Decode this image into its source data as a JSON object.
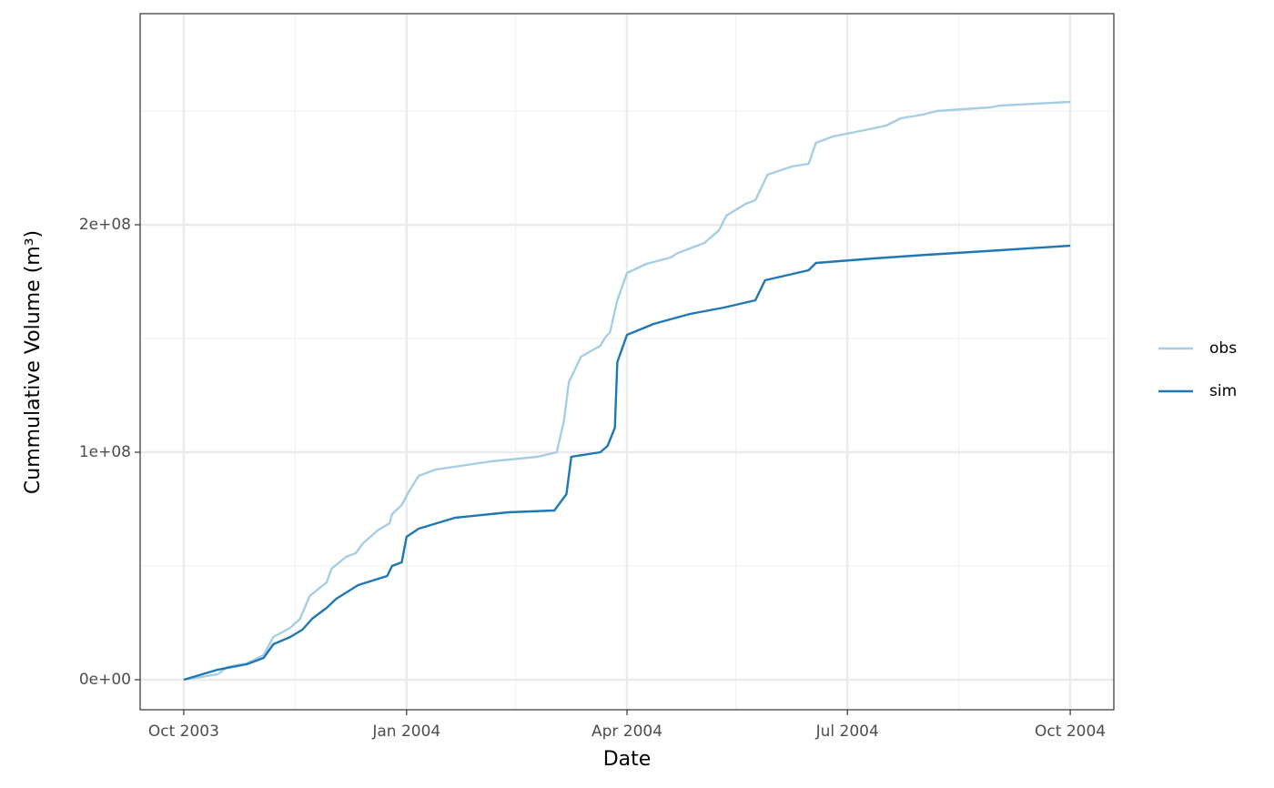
{
  "chart_data": {
    "type": "line",
    "x_label": "Date",
    "y_label": "Cummulative Volume (m³)",
    "xlim": [
      -18,
      384
    ],
    "xticks": [
      {
        "value": 0,
        "label": "Oct 2003"
      },
      {
        "value": 92,
        "label": "Jan 2004"
      },
      {
        "value": 183,
        "label": "Apr 2004"
      },
      {
        "value": 274,
        "label": "Jul 2004"
      },
      {
        "value": 366,
        "label": "Oct 2004"
      }
    ],
    "xminor": [
      46,
      137,
      228,
      320
    ],
    "ylim": [
      -13200000,
      292800000
    ],
    "yticks": [
      {
        "value": 0,
        "label": "0e+00"
      },
      {
        "value": 100000000,
        "label": "1e+08"
      },
      {
        "value": 200000000,
        "label": "2e+08"
      }
    ],
    "yminor": [
      50000000,
      150000000,
      250000000
    ],
    "grid": true,
    "legend": "right",
    "series": [
      {
        "name": "obs",
        "color": "#a6cee3",
        "x": [
          0,
          5,
          14,
          18,
          26,
          33,
          37,
          44,
          48,
          52,
          59,
          61,
          67,
          71,
          74,
          80,
          85,
          86,
          90,
          93,
          97,
          104,
          127,
          146,
          154,
          157,
          159,
          164,
          172,
          174,
          176,
          179,
          183,
          191,
          201,
          204,
          215,
          221,
          224,
          232,
          236,
          241,
          251,
          258,
          261,
          268,
          283,
          290,
          296,
          305,
          311,
          333,
          337,
          366
        ],
        "values": [
          0,
          800000,
          2400000,
          5600000,
          7200000,
          10800000,
          18800000,
          22800000,
          26800000,
          36800000,
          42800000,
          48800000,
          54000000,
          55600000,
          60000000,
          65600000,
          68800000,
          72800000,
          76800000,
          82800000,
          89600000,
          92400000,
          96000000,
          98000000,
          100000000,
          114000000,
          130800000,
          142000000,
          146800000,
          150400000,
          152800000,
          166800000,
          178800000,
          182800000,
          185600000,
          187600000,
          192000000,
          197600000,
          204000000,
          209200000,
          210800000,
          222000000,
          225600000,
          226800000,
          236000000,
          238800000,
          242000000,
          243600000,
          246800000,
          248400000,
          250000000,
          251600000,
          252400000,
          254000000
        ]
      },
      {
        "name": "sim",
        "color": "#1f78b4",
        "x": [
          0,
          14,
          26,
          33,
          37,
          44,
          49,
          53,
          59,
          63,
          72,
          84,
          86,
          90,
          92,
          97,
          112,
          134,
          153,
          158,
          160,
          172,
          175,
          178,
          179,
          183,
          194,
          209,
          223,
          236,
          240,
          258,
          261,
          285,
          307,
          337,
          366
        ],
        "values": [
          0,
          4400000,
          6800000,
          9600000,
          15600000,
          18800000,
          22000000,
          26800000,
          31600000,
          35600000,
          41600000,
          45600000,
          50000000,
          51600000,
          62800000,
          66400000,
          71200000,
          73600000,
          74400000,
          81600000,
          98000000,
          100000000,
          102800000,
          110800000,
          139600000,
          151600000,
          156400000,
          160800000,
          163600000,
          166800000,
          175600000,
          180000000,
          183200000,
          185200000,
          186800000,
          188800000,
          190800000
        ]
      }
    ]
  }
}
